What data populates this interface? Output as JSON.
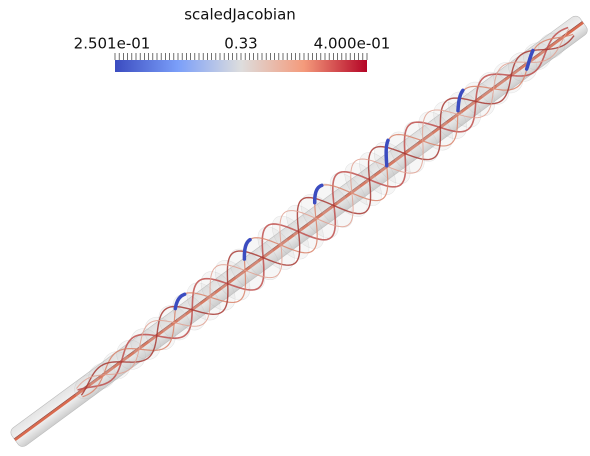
{
  "colorbar": {
    "title": "scaledJacobian",
    "labels": [
      "2.501e-01",
      "0.33",
      "4.000e-01"
    ]
  }
}
